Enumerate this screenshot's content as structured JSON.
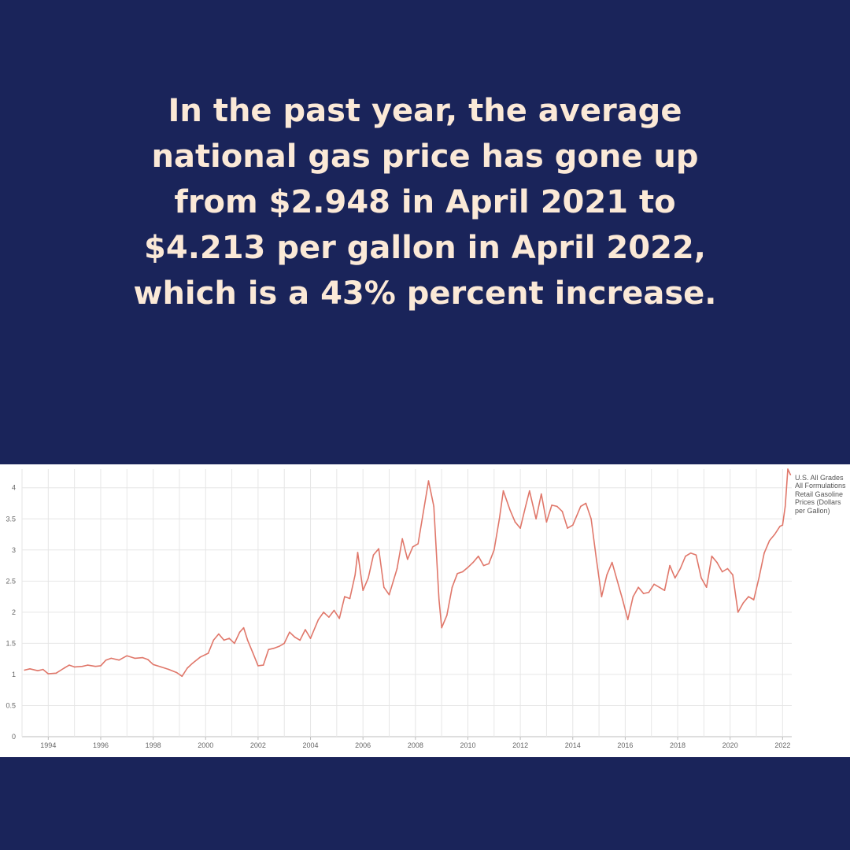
{
  "headline": "In the past year, the average national gas price has gone up from $2.948 in April 2021 to $4.213 per gallon in April 2022, which is a 43% percent increase.",
  "colors": {
    "background": "#1a245a",
    "headline_text": "#fbe9d7",
    "line": "#e0776a",
    "grid": "#e6e6e6"
  },
  "chart_data": {
    "type": "line",
    "title": "",
    "xlabel": "",
    "ylabel": "",
    "xlim": [
      1993.0,
      2022.35
    ],
    "ylim": [
      0,
      4.3
    ],
    "y_ticks": [
      0,
      0.5,
      1,
      1.5,
      2,
      2.5,
      3,
      3.5,
      4
    ],
    "y_tick_labels": [
      "0",
      "0.5",
      "1",
      "1.5",
      "2",
      "2.5",
      "3",
      "3.5",
      "4"
    ],
    "x_ticks": [
      1994,
      1996,
      1998,
      2000,
      2002,
      2004,
      2006,
      2008,
      2010,
      2012,
      2014,
      2016,
      2018,
      2020,
      2022
    ],
    "x_tick_labels": [
      "1994",
      "1996",
      "1998",
      "2000",
      "2002",
      "2004",
      "2006",
      "2008",
      "2010",
      "2012",
      "2014",
      "2016",
      "2018",
      "2020",
      "2022"
    ],
    "grid": true,
    "legend_position": "right",
    "series": [
      {
        "name": "U.S. All Grades All Formulations Retail Gasoline Prices (Dollars per Gallon)",
        "color": "#e0776a",
        "points": [
          [
            1993.1,
            1.07
          ],
          [
            1993.3,
            1.09
          ],
          [
            1993.6,
            1.06
          ],
          [
            1993.8,
            1.08
          ],
          [
            1994.0,
            1.01
          ],
          [
            1994.3,
            1.02
          ],
          [
            1994.6,
            1.1
          ],
          [
            1994.8,
            1.15
          ],
          [
            1995.0,
            1.12
          ],
          [
            1995.3,
            1.13
          ],
          [
            1995.5,
            1.15
          ],
          [
            1995.8,
            1.13
          ],
          [
            1996.0,
            1.14
          ],
          [
            1996.2,
            1.23
          ],
          [
            1996.4,
            1.26
          ],
          [
            1996.7,
            1.23
          ],
          [
            1997.0,
            1.3
          ],
          [
            1997.3,
            1.26
          ],
          [
            1997.6,
            1.27
          ],
          [
            1997.8,
            1.24
          ],
          [
            1998.0,
            1.16
          ],
          [
            1998.3,
            1.12
          ],
          [
            1998.6,
            1.08
          ],
          [
            1998.9,
            1.03
          ],
          [
            1999.1,
            0.97
          ],
          [
            1999.3,
            1.1
          ],
          [
            1999.5,
            1.18
          ],
          [
            1999.8,
            1.28
          ],
          [
            2000.1,
            1.34
          ],
          [
            2000.3,
            1.55
          ],
          [
            2000.5,
            1.65
          ],
          [
            2000.7,
            1.55
          ],
          [
            2000.9,
            1.58
          ],
          [
            2001.1,
            1.5
          ],
          [
            2001.3,
            1.68
          ],
          [
            2001.45,
            1.75
          ],
          [
            2001.6,
            1.55
          ],
          [
            2001.8,
            1.35
          ],
          [
            2002.0,
            1.14
          ],
          [
            2002.2,
            1.15
          ],
          [
            2002.4,
            1.4
          ],
          [
            2002.6,
            1.42
          ],
          [
            2002.8,
            1.45
          ],
          [
            2003.0,
            1.5
          ],
          [
            2003.2,
            1.68
          ],
          [
            2003.4,
            1.6
          ],
          [
            2003.6,
            1.55
          ],
          [
            2003.8,
            1.72
          ],
          [
            2004.0,
            1.58
          ],
          [
            2004.3,
            1.88
          ],
          [
            2004.5,
            2.0
          ],
          [
            2004.7,
            1.92
          ],
          [
            2004.9,
            2.03
          ],
          [
            2005.1,
            1.9
          ],
          [
            2005.3,
            2.25
          ],
          [
            2005.5,
            2.22
          ],
          [
            2005.7,
            2.6
          ],
          [
            2005.8,
            2.96
          ],
          [
            2006.0,
            2.35
          ],
          [
            2006.2,
            2.55
          ],
          [
            2006.4,
            2.92
          ],
          [
            2006.6,
            3.02
          ],
          [
            2006.8,
            2.4
          ],
          [
            2007.0,
            2.28
          ],
          [
            2007.3,
            2.7
          ],
          [
            2007.5,
            3.18
          ],
          [
            2007.7,
            2.85
          ],
          [
            2007.9,
            3.05
          ],
          [
            2008.1,
            3.1
          ],
          [
            2008.3,
            3.6
          ],
          [
            2008.5,
            4.11
          ],
          [
            2008.7,
            3.7
          ],
          [
            2008.9,
            2.2
          ],
          [
            2009.0,
            1.75
          ],
          [
            2009.2,
            1.95
          ],
          [
            2009.4,
            2.4
          ],
          [
            2009.6,
            2.62
          ],
          [
            2009.8,
            2.65
          ],
          [
            2010.0,
            2.72
          ],
          [
            2010.2,
            2.8
          ],
          [
            2010.4,
            2.9
          ],
          [
            2010.6,
            2.75
          ],
          [
            2010.8,
            2.78
          ],
          [
            2011.0,
            3.0
          ],
          [
            2011.2,
            3.5
          ],
          [
            2011.35,
            3.95
          ],
          [
            2011.6,
            3.65
          ],
          [
            2011.8,
            3.45
          ],
          [
            2012.0,
            3.35
          ],
          [
            2012.2,
            3.7
          ],
          [
            2012.35,
            3.95
          ],
          [
            2012.6,
            3.5
          ],
          [
            2012.8,
            3.9
          ],
          [
            2013.0,
            3.45
          ],
          [
            2013.2,
            3.72
          ],
          [
            2013.4,
            3.7
          ],
          [
            2013.6,
            3.62
          ],
          [
            2013.8,
            3.35
          ],
          [
            2014.0,
            3.4
          ],
          [
            2014.3,
            3.7
          ],
          [
            2014.5,
            3.75
          ],
          [
            2014.7,
            3.5
          ],
          [
            2014.9,
            2.85
          ],
          [
            2015.1,
            2.25
          ],
          [
            2015.3,
            2.6
          ],
          [
            2015.5,
            2.8
          ],
          [
            2015.7,
            2.5
          ],
          [
            2015.9,
            2.2
          ],
          [
            2016.1,
            1.88
          ],
          [
            2016.3,
            2.25
          ],
          [
            2016.5,
            2.4
          ],
          [
            2016.7,
            2.3
          ],
          [
            2016.9,
            2.32
          ],
          [
            2017.1,
            2.45
          ],
          [
            2017.3,
            2.4
          ],
          [
            2017.5,
            2.35
          ],
          [
            2017.7,
            2.75
          ],
          [
            2017.9,
            2.55
          ],
          [
            2018.1,
            2.7
          ],
          [
            2018.3,
            2.9
          ],
          [
            2018.5,
            2.95
          ],
          [
            2018.7,
            2.92
          ],
          [
            2018.9,
            2.55
          ],
          [
            2019.1,
            2.4
          ],
          [
            2019.3,
            2.9
          ],
          [
            2019.5,
            2.8
          ],
          [
            2019.7,
            2.65
          ],
          [
            2019.9,
            2.7
          ],
          [
            2020.1,
            2.6
          ],
          [
            2020.3,
            2.0
          ],
          [
            2020.5,
            2.15
          ],
          [
            2020.7,
            2.25
          ],
          [
            2020.9,
            2.2
          ],
          [
            2021.1,
            2.55
          ],
          [
            2021.3,
            2.95
          ],
          [
            2021.5,
            3.15
          ],
          [
            2021.7,
            3.25
          ],
          [
            2021.9,
            3.38
          ],
          [
            2022.0,
            3.4
          ],
          [
            2022.1,
            3.7
          ],
          [
            2022.2,
            4.3
          ],
          [
            2022.3,
            4.21
          ]
        ]
      }
    ]
  }
}
